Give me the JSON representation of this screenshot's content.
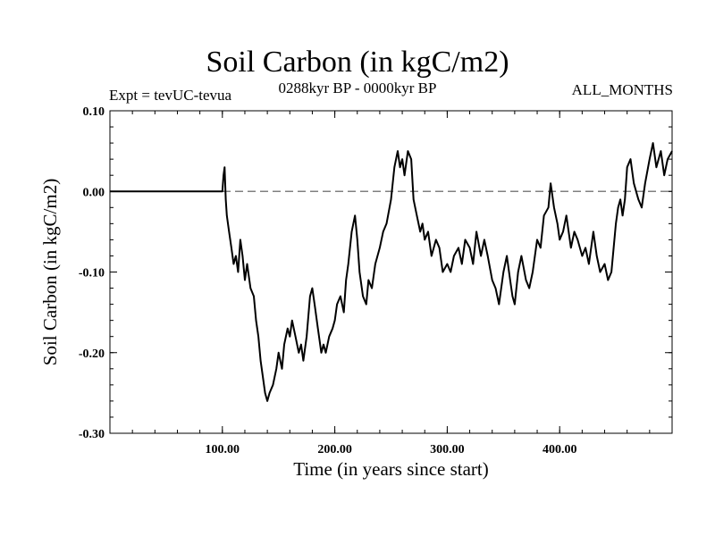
{
  "header": {
    "title": "Soil Carbon (in kgC/m2)",
    "subtitle": "0288kyr BP - 0000kyr BP",
    "experiment": "Expt = tevUC-tevua",
    "months": "ALL_MONTHS"
  },
  "chart_data": {
    "type": "line",
    "title": "Soil Carbon (in kgC/m2)",
    "xlabel": "Time (in years since start)",
    "ylabel": "Soil Carbon (in kgC/m2)",
    "xlim": [
      0,
      500
    ],
    "ylim": [
      -0.3,
      0.1
    ],
    "x_ticks": [
      100,
      200,
      300,
      400
    ],
    "x_tick_labels": [
      "100.00",
      "200.00",
      "300.00",
      "400.00"
    ],
    "y_ticks": [
      0.1,
      0.0,
      -0.1,
      -0.2,
      -0.3
    ],
    "y_tick_labels": [
      "0.10",
      "0.00",
      "-0.10",
      "-0.20",
      "-0.30"
    ],
    "reference_line": {
      "y": 0.0,
      "style": "dashed",
      "color": "#808080"
    },
    "series": [
      {
        "name": "Soil Carbon",
        "color": "#000000",
        "x": [
          0,
          100,
          101,
          102,
          103,
          104,
          106,
          108,
          110,
          112,
          114,
          116,
          118,
          120,
          122,
          125,
          128,
          130,
          132,
          134,
          136,
          138,
          140,
          142,
          145,
          148,
          150,
          153,
          155,
          158,
          160,
          162,
          165,
          168,
          170,
          172,
          175,
          178,
          180,
          182,
          185,
          188,
          190,
          192,
          195,
          198,
          200,
          202,
          205,
          208,
          210,
          212,
          215,
          218,
          220,
          222,
          225,
          228,
          230,
          233,
          236,
          240,
          243,
          246,
          250,
          253,
          256,
          258,
          260,
          262,
          265,
          268,
          270,
          273,
          276,
          278,
          280,
          283,
          286,
          290,
          293,
          296,
          300,
          303,
          306,
          310,
          313,
          316,
          320,
          323,
          326,
          330,
          333,
          336,
          340,
          343,
          346,
          350,
          353,
          356,
          358,
          360,
          363,
          366,
          370,
          373,
          376,
          380,
          383,
          386,
          390,
          392,
          395,
          398,
          400,
          403,
          406,
          410,
          413,
          416,
          420,
          423,
          426,
          430,
          433,
          436,
          440,
          443,
          446,
          448,
          450,
          452,
          454,
          456,
          458,
          460,
          463,
          466,
          470,
          473,
          476,
          480,
          483,
          486,
          490,
          493,
          496,
          500
        ],
        "y": [
          0.0,
          0.0,
          0.02,
          0.03,
          -0.01,
          -0.03,
          -0.05,
          -0.07,
          -0.09,
          -0.08,
          -0.1,
          -0.06,
          -0.08,
          -0.11,
          -0.09,
          -0.12,
          -0.13,
          -0.16,
          -0.18,
          -0.21,
          -0.23,
          -0.25,
          -0.26,
          -0.25,
          -0.24,
          -0.22,
          -0.2,
          -0.22,
          -0.19,
          -0.17,
          -0.18,
          -0.16,
          -0.18,
          -0.2,
          -0.19,
          -0.21,
          -0.18,
          -0.13,
          -0.12,
          -0.14,
          -0.17,
          -0.2,
          -0.19,
          -0.2,
          -0.18,
          -0.17,
          -0.16,
          -0.14,
          -0.13,
          -0.15,
          -0.11,
          -0.09,
          -0.05,
          -0.03,
          -0.06,
          -0.1,
          -0.13,
          -0.14,
          -0.11,
          -0.12,
          -0.09,
          -0.07,
          -0.05,
          -0.04,
          -0.01,
          0.03,
          0.05,
          0.03,
          0.04,
          0.02,
          0.05,
          0.04,
          -0.01,
          -0.03,
          -0.05,
          -0.04,
          -0.06,
          -0.05,
          -0.08,
          -0.06,
          -0.07,
          -0.1,
          -0.09,
          -0.1,
          -0.08,
          -0.07,
          -0.09,
          -0.06,
          -0.07,
          -0.09,
          -0.05,
          -0.08,
          -0.06,
          -0.08,
          -0.11,
          -0.12,
          -0.14,
          -0.1,
          -0.08,
          -0.11,
          -0.13,
          -0.14,
          -0.1,
          -0.08,
          -0.11,
          -0.12,
          -0.1,
          -0.06,
          -0.07,
          -0.03,
          -0.02,
          0.01,
          -0.02,
          -0.04,
          -0.06,
          -0.05,
          -0.03,
          -0.07,
          -0.05,
          -0.06,
          -0.08,
          -0.07,
          -0.09,
          -0.05,
          -0.08,
          -0.1,
          -0.09,
          -0.11,
          -0.1,
          -0.07,
          -0.04,
          -0.02,
          -0.01,
          -0.03,
          -0.01,
          0.03,
          0.04,
          0.01,
          -0.01,
          -0.02,
          0.01,
          0.04,
          0.06,
          0.03,
          0.05,
          0.02,
          0.04,
          0.05
        ]
      }
    ]
  }
}
